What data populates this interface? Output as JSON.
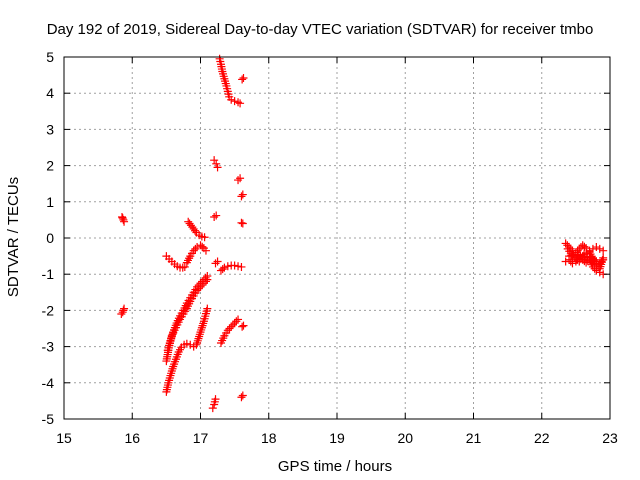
{
  "chart_data": {
    "type": "scatter",
    "title": "Day 192 of 2019, Sidereal Day-to-day VTEC variation (SDTVAR) for receiver tmbo",
    "xlabel": "GPS time / hours",
    "ylabel": "SDTVAR / TECUs",
    "xlim": [
      15,
      23
    ],
    "ylim": [
      -5,
      5
    ],
    "xticks": [
      15,
      16,
      17,
      18,
      19,
      20,
      21,
      22,
      23
    ],
    "yticks": [
      -5,
      -4,
      -3,
      -2,
      -1,
      0,
      1,
      2,
      3,
      4,
      5
    ],
    "grid": true,
    "marker": "+",
    "colors": {
      "points": "#ff0000",
      "grid": "#a0a0a0",
      "axis": "#000000"
    },
    "series": [
      {
        "name": "tmbo",
        "segments": [
          {
            "x": [
              15.85,
              15.86,
              15.87,
              15.88
            ],
            "y": [
              0.58,
              0.55,
              0.5,
              0.45
            ]
          },
          {
            "x": [
              15.84,
              15.86,
              15.87,
              15.88
            ],
            "y": [
              -2.1,
              -2.05,
              -2.0,
              -1.95
            ]
          },
          {
            "x": [
              16.5,
              16.54,
              16.58,
              16.62,
              16.66,
              16.7,
              16.74,
              16.77
            ],
            "y": [
              -0.5,
              -0.58,
              -0.65,
              -0.72,
              -0.78,
              -0.82,
              -0.82,
              -0.8
            ]
          },
          {
            "x": [
              16.8,
              16.85,
              16.9,
              16.95,
              17.0,
              17.05,
              17.08
            ],
            "y": [
              -0.68,
              -0.5,
              -0.35,
              -0.25,
              -0.2,
              -0.28,
              -0.35
            ]
          },
          {
            "x": [
              16.82,
              16.86,
              16.9,
              16.94,
              16.98,
              17.02,
              17.06
            ],
            "y": [
              0.45,
              0.35,
              0.25,
              0.15,
              0.08,
              0.04,
              0.02
            ]
          },
          {
            "x": [
              16.5,
              16.53,
              16.56,
              16.6,
              16.65,
              16.7,
              16.75,
              16.8,
              16.85,
              16.9,
              16.95,
              17.0,
              17.05,
              17.1
            ],
            "y": [
              -3.4,
              -3.1,
              -2.85,
              -2.6,
              -2.35,
              -2.15,
              -2.0,
              -1.8,
              -1.65,
              -1.5,
              -1.35,
              -1.25,
              -1.15,
              -1.05
            ]
          },
          {
            "x": [
              16.52,
              16.55,
              16.58,
              16.62,
              16.66,
              16.7,
              16.75,
              16.8,
              16.85,
              16.9,
              16.95,
              17.0,
              17.05,
              17.08,
              17.1
            ],
            "y": [
              -3.1,
              -2.9,
              -2.7,
              -2.55,
              -2.4,
              -2.25,
              -2.1,
              -1.95,
              -1.75,
              -1.6,
              -1.45,
              -1.35,
              -1.25,
              -1.2,
              -1.15
            ]
          },
          {
            "x": [
              16.5,
              16.53,
              16.56,
              16.6,
              16.64,
              16.68,
              16.72,
              16.76,
              16.8,
              16.85,
              16.9,
              16.94
            ],
            "y": [
              -4.25,
              -4.0,
              -3.8,
              -3.55,
              -3.35,
              -3.15,
              -3.02,
              -2.95,
              -2.92,
              -2.95,
              -3.0,
              -2.95
            ]
          },
          {
            "x": [
              16.95,
              17.0,
              17.05,
              17.1
            ],
            "y": [
              -2.9,
              -2.6,
              -2.3,
              -1.95
            ]
          },
          {
            "x": [
              17.18,
              17.2,
              17.22
            ],
            "y": [
              -4.7,
              -4.6,
              -4.45
            ]
          },
          {
            "x": [
              17.2,
              17.23
            ],
            "y": [
              0.58,
              0.62
            ]
          },
          {
            "x": [
              17.2,
              17.23,
              17.25
            ],
            "y": [
              2.15,
              2.05,
              1.95
            ]
          },
          {
            "x": [
              17.22,
              17.25
            ],
            "y": [
              -0.7,
              -0.65
            ]
          },
          {
            "x": [
              17.28,
              17.3,
              17.32,
              17.35,
              17.38,
              17.4,
              17.42,
              17.45,
              17.5,
              17.55,
              17.58
            ],
            "y": [
              4.95,
              4.8,
              4.6,
              4.4,
              4.2,
              4.05,
              3.9,
              3.82,
              3.78,
              3.75,
              3.72
            ]
          },
          {
            "x": [
              17.3,
              17.35,
              17.4,
              17.45,
              17.5,
              17.55,
              17.6
            ],
            "y": [
              -0.9,
              -0.82,
              -0.78,
              -0.76,
              -0.76,
              -0.78,
              -0.8
            ]
          },
          {
            "x": [
              17.3,
              17.35,
              17.4,
              17.45,
              17.5,
              17.55
            ],
            "y": [
              -2.9,
              -2.7,
              -2.55,
              -2.45,
              -2.35,
              -2.25
            ]
          },
          {
            "x": [
              17.55,
              17.58
            ],
            "y": [
              1.6,
              1.65
            ]
          },
          {
            "x": [
              17.6,
              17.62
            ],
            "y": [
              1.15,
              1.2
            ]
          },
          {
            "x": [
              17.6,
              17.62
            ],
            "y": [
              0.42,
              0.4
            ]
          },
          {
            "x": [
              17.61,
              17.63
            ],
            "y": [
              4.38,
              4.42
            ]
          },
          {
            "x": [
              17.61,
              17.63
            ],
            "y": [
              -2.45,
              -2.42
            ]
          },
          {
            "x": [
              17.6,
              17.62
            ],
            "y": [
              -4.4,
              -4.35
            ]
          },
          {
            "x": [
              22.35,
              22.4,
              22.45,
              22.5,
              22.55,
              22.6,
              22.65,
              22.7,
              22.75,
              22.8,
              22.85,
              22.9
            ],
            "y": [
              -0.15,
              -0.25,
              -0.35,
              -0.4,
              -0.3,
              -0.2,
              -0.28,
              -0.35,
              -0.3,
              -0.25,
              -0.3,
              -0.35
            ]
          },
          {
            "x": [
              22.35,
              22.4,
              22.45,
              22.5,
              22.55,
              22.6,
              22.65,
              22.7,
              22.75,
              22.8,
              22.85,
              22.9
            ],
            "y": [
              -0.65,
              -0.6,
              -0.7,
              -0.65,
              -0.55,
              -0.6,
              -0.68,
              -0.6,
              -0.55,
              -0.65,
              -0.7,
              -0.6
            ]
          },
          {
            "x": [
              22.4,
              22.5,
              22.6,
              22.7,
              22.75,
              22.8,
              22.85,
              22.9
            ],
            "y": [
              -0.5,
              -0.45,
              -0.5,
              -0.55,
              -0.8,
              -0.9,
              -0.95,
              -1.0
            ]
          },
          {
            "x": [
              22.38,
              22.45,
              22.55,
              22.62,
              22.7,
              22.78,
              22.85,
              22.9
            ],
            "y": [
              -0.3,
              -0.5,
              -0.65,
              -0.45,
              -0.38,
              -0.7,
              -0.85,
              -0.55
            ]
          }
        ]
      }
    ]
  }
}
